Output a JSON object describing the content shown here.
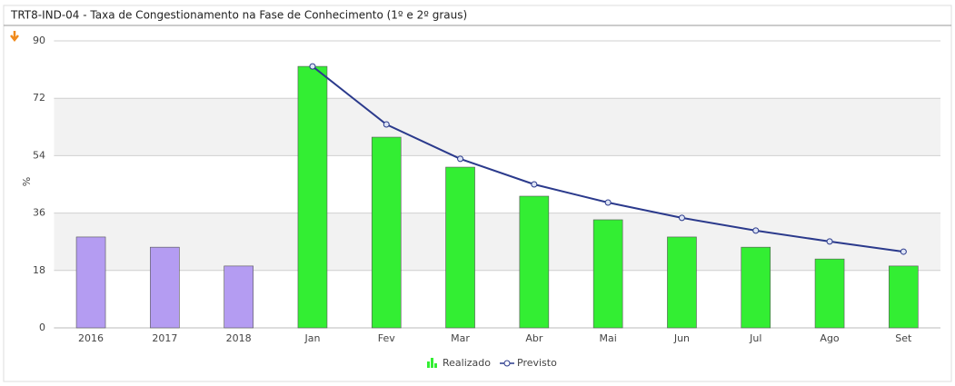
{
  "chart_data": {
    "type": "bar",
    "title": "TRT8-IND-04 - Taxa de Congestionamento na Fase de Conhecimento (1º e 2º graus)",
    "y_label": "%",
    "categories": [
      "2016",
      "2017",
      "2018",
      "Jan",
      "Fev",
      "Mar",
      "Abr",
      "Mai",
      "Jun",
      "Jul",
      "Ago",
      "Set"
    ],
    "series": [
      {
        "name": "Realizado",
        "type": "bar",
        "color": "#33ee33",
        "colors": [
          "#b49cf2",
          "#b49cf2",
          "#b49cf2",
          "#33ee33",
          "#33ee33",
          "#33ee33",
          "#33ee33",
          "#33ee33",
          "#33ee33",
          "#33ee33",
          "#33ee33",
          "#33ee33"
        ],
        "values": [
          28.5,
          25.3,
          19.4,
          82.0,
          59.8,
          50.4,
          41.3,
          33.9,
          28.5,
          25.3,
          21.6,
          19.4
        ]
      },
      {
        "name": "Previsto",
        "type": "line",
        "color": "#2b3a8c",
        "values": [
          null,
          null,
          null,
          82.0,
          63.8,
          53.0,
          45.0,
          39.3,
          34.5,
          30.5,
          27.1,
          23.9
        ]
      }
    ],
    "ylim": [
      0,
      90
    ],
    "yticks": [
      0,
      18,
      36,
      54,
      72,
      90
    ],
    "grid": true,
    "legend": "bottom"
  }
}
